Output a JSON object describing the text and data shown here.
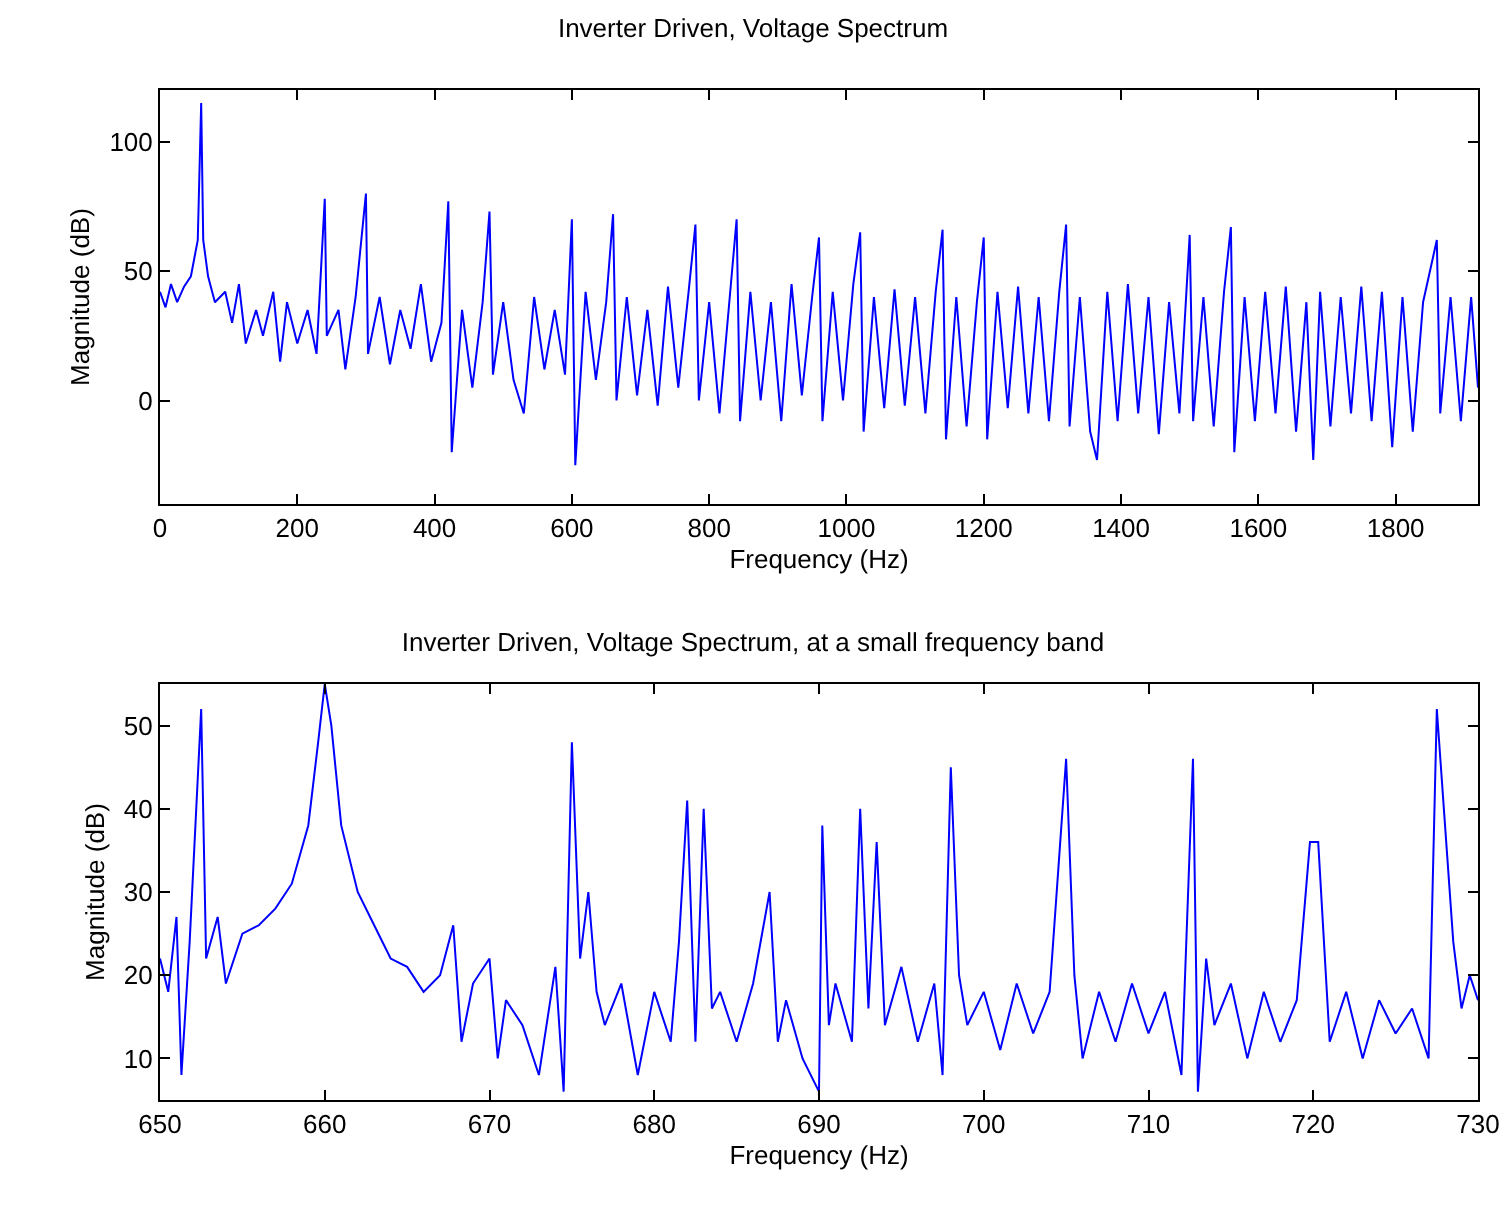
{
  "chart_data": [
    {
      "type": "line",
      "title": "Inverter Driven, Voltage Spectrum",
      "xlabel": "Frequency (Hz)",
      "ylabel": "Magnitude (dB)",
      "xlim": [
        0,
        1920
      ],
      "xticks": [
        0,
        200,
        400,
        600,
        800,
        1000,
        1200,
        1400,
        1600,
        1800
      ],
      "ylim": [
        -40,
        120
      ],
      "yticks": [
        0,
        50,
        100
      ],
      "grid": false,
      "legend": false,
      "marker": "none",
      "line_style": "solid",
      "x": [
        0,
        8,
        16,
        25,
        35,
        45,
        55,
        60,
        63,
        70,
        80,
        95,
        105,
        115,
        125,
        140,
        150,
        165,
        175,
        185,
        200,
        215,
        228,
        240,
        243,
        260,
        270,
        285,
        300,
        303,
        320,
        335,
        350,
        365,
        380,
        395,
        410,
        420,
        425,
        440,
        455,
        470,
        480,
        485,
        500,
        515,
        530,
        545,
        560,
        575,
        590,
        600,
        605,
        620,
        635,
        650,
        660,
        665,
        680,
        695,
        710,
        725,
        740,
        755,
        770,
        780,
        785,
        800,
        815,
        830,
        840,
        845,
        860,
        875,
        890,
        905,
        920,
        935,
        950,
        960,
        965,
        980,
        995,
        1010,
        1020,
        1025,
        1040,
        1055,
        1070,
        1085,
        1100,
        1115,
        1130,
        1140,
        1145,
        1160,
        1175,
        1190,
        1200,
        1205,
        1220,
        1235,
        1250,
        1265,
        1280,
        1295,
        1310,
        1320,
        1325,
        1340,
        1355,
        1365,
        1380,
        1395,
        1410,
        1425,
        1440,
        1455,
        1470,
        1485,
        1500,
        1505,
        1520,
        1535,
        1550,
        1560,
        1565,
        1580,
        1595,
        1610,
        1625,
        1640,
        1655,
        1670,
        1680,
        1690,
        1705,
        1720,
        1735,
        1750,
        1765,
        1780,
        1795,
        1810,
        1825,
        1840,
        1860,
        1865,
        1880,
        1895,
        1910,
        1920
      ],
      "series": [
        {
          "color": "#0000ff",
          "values": [
            42,
            36,
            45,
            38,
            44,
            48,
            62,
            115,
            62,
            48,
            38,
            42,
            30,
            45,
            22,
            35,
            25,
            42,
            15,
            38,
            22,
            35,
            18,
            78,
            25,
            35,
            12,
            40,
            80,
            18,
            40,
            14,
            35,
            20,
            45,
            15,
            30,
            77,
            -20,
            35,
            5,
            38,
            73,
            10,
            38,
            8,
            -5,
            40,
            12,
            35,
            10,
            70,
            -25,
            42,
            8,
            38,
            72,
            0,
            40,
            2,
            35,
            -2,
            44,
            5,
            42,
            68,
            0,
            38,
            -5,
            40,
            70,
            -8,
            42,
            0,
            38,
            -8,
            45,
            2,
            40,
            63,
            -8,
            42,
            0,
            45,
            65,
            -12,
            40,
            -3,
            43,
            -2,
            40,
            -5,
            42,
            66,
            -15,
            40,
            -10,
            38,
            63,
            -15,
            42,
            -3,
            44,
            -5,
            40,
            -8,
            42,
            68,
            -10,
            40,
            -12,
            -23,
            42,
            -8,
            45,
            -5,
            40,
            -13,
            38,
            -5,
            64,
            -8,
            40,
            -10,
            42,
            67,
            -20,
            40,
            -8,
            42,
            -5,
            44,
            -12,
            38,
            -23,
            42,
            -10,
            40,
            -5,
            44,
            -8,
            42,
            -18,
            40,
            -12,
            38,
            62,
            -5,
            40,
            -8,
            40,
            5
          ]
        }
      ]
    },
    {
      "type": "line",
      "title": "Inverter Driven, Voltage Spectrum, at a small frequency band",
      "xlabel": "Frequency (Hz)",
      "ylabel": "Magnitude (dB)",
      "xlim": [
        650,
        730
      ],
      "xticks": [
        650,
        660,
        670,
        680,
        690,
        700,
        710,
        720,
        730
      ],
      "ylim": [
        5,
        55
      ],
      "yticks": [
        10,
        20,
        30,
        40,
        50
      ],
      "grid": false,
      "legend": false,
      "marker": "none",
      "line_style": "solid",
      "x": [
        650,
        650.5,
        651,
        651.3,
        651.8,
        652.5,
        652.8,
        653.5,
        654,
        655,
        656,
        657,
        658,
        659,
        659.6,
        660,
        660.4,
        661,
        662,
        663,
        664,
        665,
        666,
        667,
        667.8,
        668.3,
        669,
        670,
        670.5,
        671,
        672,
        673,
        674,
        674.5,
        675,
        675.5,
        676,
        676.5,
        677,
        678,
        679,
        680,
        681,
        681.5,
        682,
        682.5,
        683,
        683.5,
        684,
        685,
        686,
        687,
        687.5,
        688,
        689,
        690,
        690.2,
        690.6,
        691,
        692,
        692.5,
        693,
        693.5,
        694,
        695,
        696,
        697,
        697.5,
        698,
        698.5,
        699,
        700,
        701,
        702,
        703,
        704,
        705,
        705.5,
        706,
        707,
        708,
        709,
        710,
        711,
        712,
        712.7,
        713,
        713.5,
        714,
        715,
        716,
        717,
        718,
        719,
        719.8,
        720.3,
        721,
        722,
        723,
        724,
        725,
        726,
        727,
        727.5,
        728,
        728.5,
        729,
        729.5,
        730
      ],
      "series": [
        {
          "color": "#0000ff",
          "values": [
            22,
            18,
            27,
            8,
            24,
            52,
            22,
            27,
            19,
            25,
            26,
            28,
            31,
            38,
            48,
            55,
            50,
            38,
            30,
            26,
            22,
            21,
            18,
            20,
            26,
            12,
            19,
            22,
            10,
            17,
            14,
            8,
            21,
            6,
            48,
            22,
            30,
            18,
            14,
            19,
            8,
            18,
            12,
            24,
            41,
            12,
            40,
            16,
            18,
            12,
            19,
            30,
            12,
            17,
            10,
            6,
            38,
            14,
            19,
            12,
            40,
            16,
            36,
            14,
            21,
            12,
            19,
            8,
            45,
            20,
            14,
            18,
            11,
            19,
            13,
            18,
            46,
            20,
            10,
            18,
            12,
            19,
            13,
            18,
            8,
            46,
            6,
            22,
            14,
            19,
            10,
            18,
            12,
            17,
            36,
            36,
            12,
            18,
            10,
            17,
            13,
            16,
            10,
            52,
            38,
            24,
            16,
            20,
            17
          ]
        }
      ]
    }
  ]
}
